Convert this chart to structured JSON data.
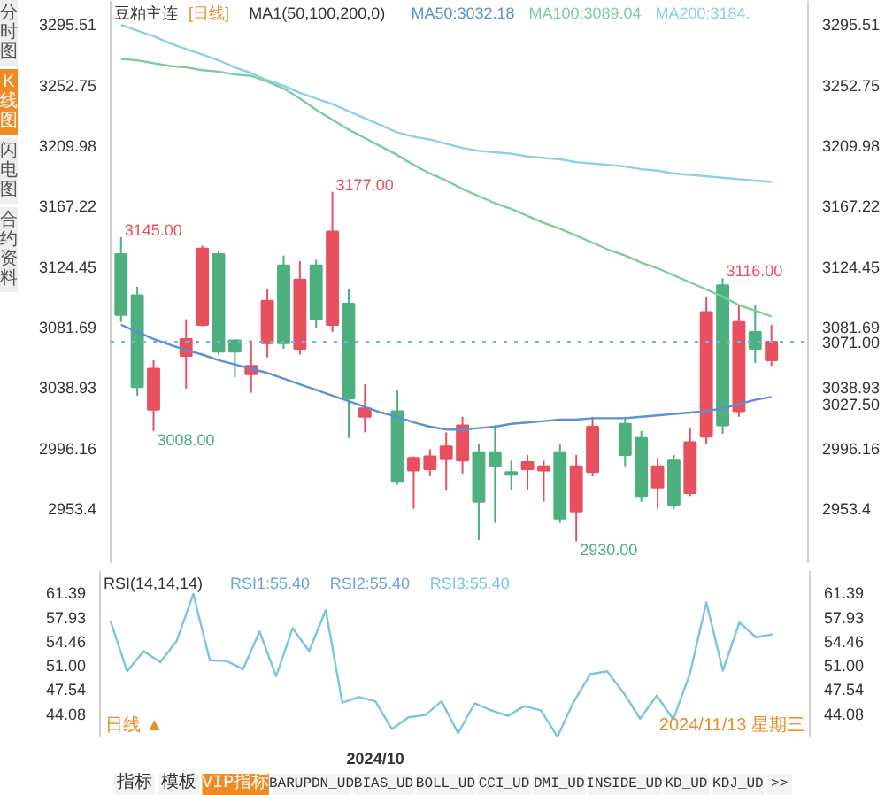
{
  "chart_data": [
    {
      "type": "candlestick",
      "title": "豆粕主连",
      "subtitle": "[日线]",
      "legend_title": "MA1(50,100,200,0)",
      "legend": "top",
      "tick_labels": "y",
      "categories": [
        null,
        null,
        null,
        null,
        null,
        null,
        null,
        null,
        null,
        null,
        null,
        null,
        null,
        null,
        null,
        null,
        null,
        null,
        null,
        null,
        null,
        null,
        null,
        null,
        null,
        null,
        null,
        null,
        null,
        null,
        null,
        null,
        null,
        null,
        null,
        null,
        null,
        null,
        null,
        null,
        null
      ],
      "ohlc": [
        [
          3133,
          3145,
          3085,
          3090
        ],
        [
          3104,
          3110,
          3033,
          3039
        ],
        [
          3023,
          3058,
          3008,
          3052
        ],
        null,
        [
          3061,
          3087,
          3038,
          3073
        ],
        [
          3083,
          3139,
          3082,
          3137
        ],
        [
          3133,
          3135,
          3062,
          3064
        ],
        [
          3072,
          3073,
          3046,
          3064
        ],
        [
          3048,
          3072,
          3035,
          3054
        ],
        [
          3070,
          3108,
          3060,
          3100
        ],
        [
          3125,
          3132,
          3066,
          3070
        ],
        [
          3066,
          3128,
          3062,
          3115
        ],
        [
          3125,
          3129,
          3081,
          3087
        ],
        [
          3083,
          3177,
          3078,
          3149
        ],
        [
          3098,
          3108,
          3003,
          3031
        ],
        [
          3018,
          3041,
          3007,
          3024
        ],
        null,
        [
          3022,
          3037,
          2970,
          2972
        ],
        [
          2980,
          2990,
          2953,
          2989
        ],
        [
          2981,
          2995,
          2976,
          2990
        ],
        [
          2988,
          3007,
          2966,
          2997
        ],
        [
          2987,
          3018,
          2978,
          3012
        ],
        [
          2993,
          2999,
          2931,
          2958
        ],
        [
          2993,
          3012,
          2943,
          2983
        ],
        [
          2979,
          2987,
          2966,
          2977
        ],
        [
          2981,
          2991,
          2966,
          2986
        ],
        [
          2980,
          2987,
          2958,
          2983
        ],
        [
          2993,
          2999,
          2943,
          2946
        ],
        [
          2951,
          2991,
          2930,
          2983
        ],
        [
          2979,
          3018,
          2976,
          3011
        ],
        null,
        [
          3013,
          3018,
          2983,
          2991
        ],
        [
          3003,
          3008,
          2958,
          2962
        ],
        [
          2968,
          2989,
          2953,
          2983
        ],
        [
          2987,
          2991,
          2953,
          2956
        ],
        [
          2964,
          3010,
          2962,
          3000
        ],
        [
          3004,
          3103,
          2999,
          3092
        ],
        [
          3111,
          3116,
          3006,
          3012
        ],
        [
          3022,
          3097,
          3018,
          3085
        ],
        [
          3078,
          3097,
          3056,
          3066
        ],
        [
          3058,
          3083,
          3054,
          3071
        ]
      ],
      "colors": [
        "#4eb07e",
        "#4eb07e",
        "#e9505f",
        null,
        "#e9505f",
        "#e9505f",
        "#4eb07e",
        "#4eb07e",
        "#e9505f",
        "#e9505f",
        "#4eb07e",
        "#e9505f",
        "#4eb07e",
        "#e9505f",
        "#4eb07e",
        "#e9505f",
        null,
        "#4eb07e",
        "#e9505f",
        "#e9505f",
        "#e9505f",
        "#e9505f",
        "#4eb07e",
        "#4eb07e",
        "#4eb07e",
        "#e9505f",
        "#e9505f",
        "#4eb07e",
        "#e9505f",
        "#e9505f",
        null,
        "#4eb07e",
        "#4eb07e",
        "#e9505f",
        "#4eb07e",
        "#e9505f",
        "#e9505f",
        "#4eb07e",
        "#e9505f",
        "#4eb07e",
        "#e9505f"
      ],
      "series": [
        {
          "name": "MA50:3032.18",
          "type": "line",
          "color": "#5b8fd6",
          "values": [
            3083,
            3078,
            3073,
            3069,
            3065,
            3062,
            3058,
            3055,
            3052,
            3049,
            3045,
            3041,
            3037,
            3033,
            3029,
            3025,
            3021,
            3018,
            3014,
            3011,
            3009,
            3009,
            3010,
            3011,
            3013,
            3014,
            3015,
            3016,
            3016,
            3017,
            3017,
            3017,
            3018,
            3019,
            3020,
            3021,
            3022,
            3024,
            3027,
            3030,
            3032
          ]
        },
        {
          "name": "MA100:3089.04",
          "type": "line",
          "color": "#7ccc9c",
          "values": [
            3271,
            3270,
            3268,
            3266,
            3265,
            3263,
            3262,
            3260,
            3259,
            3255,
            3250,
            3243,
            3235,
            3228,
            3221,
            3215,
            3209,
            3203,
            3196,
            3190,
            3185,
            3179,
            3174,
            3169,
            3165,
            3160,
            3155,
            3151,
            3146,
            3141,
            3136,
            3132,
            3127,
            3123,
            3118,
            3113,
            3108,
            3103,
            3097,
            3093,
            3089
          ]
        },
        {
          "name": "MA200:3184.",
          "type": "line",
          "color": "#8ccfe8",
          "values": [
            3295,
            3291,
            3287,
            3282,
            3278,
            3274,
            3270,
            3265,
            3261,
            3256,
            3252,
            3247,
            3243,
            3239,
            3234,
            3229,
            3224,
            3219,
            3216,
            3214,
            3211,
            3208,
            3206,
            3205,
            3204,
            3202,
            3201,
            3200,
            3198,
            3197,
            3196,
            3195,
            3193,
            3192,
            3190,
            3189,
            3188,
            3187,
            3186,
            3185,
            3184
          ]
        }
      ],
      "ylim": [
        2914,
        3312
      ],
      "yticks": [
        2953.4,
        2996.16,
        3038.93,
        3081.69,
        3124.45,
        3167.22,
        3209.98,
        3252.75,
        3295.51
      ],
      "y2lim": [
        2914,
        3312
      ],
      "y2ticks": [
        2953.4,
        2996.16,
        {
          "value": 3027.5,
          "label": "3027.50"
        },
        3038.93,
        {
          "value": 3071,
          "label": "3071.00"
        },
        3081.69,
        3124.45,
        3167.22,
        3209.98,
        3252.75,
        3295.51
      ],
      "ref_lines": [
        {
          "axis": "y",
          "value": 3071,
          "color": "#6cb4e4",
          "line_style": "dotted"
        }
      ],
      "annotations": [
        "分时图",
        "K线图",
        "闪电图",
        "合约资料",
        "3145.00",
        "3177.00",
        "3116.00",
        "3008.00",
        "2930.00"
      ]
    },
    {
      "type": "line",
      "legend_title": "RSI(14,14,14)",
      "legend": "top",
      "categories": [
        null,
        null,
        null,
        null,
        null,
        null,
        null,
        null,
        null,
        null,
        null,
        null,
        null,
        null,
        null,
        null,
        "2024/10",
        null,
        null,
        null,
        null,
        null,
        null,
        null,
        null,
        null,
        null,
        null,
        null,
        null,
        null,
        null,
        null,
        null,
        null,
        null,
        null,
        null,
        null,
        null,
        null
      ],
      "series": [
        {
          "name": "RSI3:55.40",
          "color": "#7cc4e6",
          "values": [
            57.3,
            50.1,
            53.0,
            51.4,
            54.5,
            61.2,
            51.7,
            51.6,
            50.4,
            55.8,
            49.4,
            56.3,
            53.0,
            58.9,
            45.6,
            46.4,
            45.8,
            41.8,
            43.5,
            43.8,
            45.8,
            41.2,
            45.5,
            44.5,
            43.7,
            45.1,
            44.5,
            40.7,
            45.8,
            49.7,
            50.1,
            47.0,
            43.3,
            46.6,
            43.2,
            49.7,
            60.0,
            50.2,
            57.1,
            55.0,
            55.4
          ]
        }
      ],
      "ylim": [
        40.6,
        64.5
      ],
      "yticks": [
        44.08,
        47.54,
        {
          "value": 51,
          "label": "51.00"
        },
        54.46,
        57.93,
        61.39
      ],
      "y2lim": [
        40.6,
        64.5
      ],
      "y2ticks": [
        44.08,
        47.54,
        {
          "value": 51,
          "label": "51.00"
        },
        54.46,
        57.93,
        61.39
      ],
      "annotations": [
        "RSI1:55.40",
        "RSI2:55.40",
        "日线 ▲",
        "2024/11/13 星期三",
        "指标",
        "模板",
        "VIP指标",
        "BARUPDN_UD",
        "BIAS_UD",
        "BOLL_UD",
        "CCI_UD",
        "DMI_UD",
        "INSIDE_UD",
        "KD_UD",
        "KDJ_UD",
        ">>"
      ]
    }
  ]
}
